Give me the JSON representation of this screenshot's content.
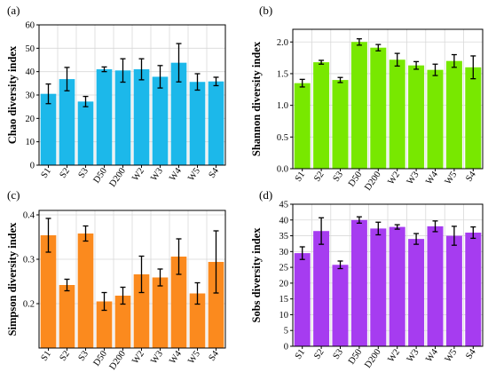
{
  "chart_data": [
    {
      "panel": "(a)",
      "type": "bar",
      "ylabel": "Chao diversity index",
      "color": "#1cb8ea",
      "categories": [
        "S1",
        "S2",
        "S3",
        "D50",
        "D200",
        "W2",
        "W3",
        "W4",
        "W5",
        "S4"
      ],
      "values": [
        30.5,
        36.8,
        27.2,
        41.0,
        40.5,
        41.0,
        37.8,
        43.8,
        35.6,
        35.8
      ],
      "errors": [
        4.2,
        5.0,
        2.2,
        1.0,
        5.0,
        4.5,
        4.8,
        8.2,
        3.5,
        1.8
      ],
      "ylim": [
        0,
        60
      ],
      "yticks": [
        0,
        10,
        20,
        30,
        40,
        50,
        60
      ],
      "ytick_labels": [
        "0",
        "10",
        "20",
        "30",
        "40",
        "50",
        "60"
      ],
      "grid": true
    },
    {
      "panel": "(b)",
      "type": "bar",
      "ylabel": "Shannon diversity index",
      "color": "#78e800",
      "categories": [
        "S1",
        "S2",
        "S3",
        "D50",
        "D200",
        "W2",
        "W3",
        "W4",
        "W5",
        "S4"
      ],
      "values": [
        1.35,
        1.68,
        1.4,
        2.0,
        1.91,
        1.72,
        1.63,
        1.56,
        1.7,
        1.6
      ],
      "errors": [
        0.06,
        0.03,
        0.04,
        0.05,
        0.05,
        0.1,
        0.06,
        0.09,
        0.1,
        0.18
      ],
      "ylim": [
        0,
        2.2
      ],
      "yticks": [
        0,
        0.5,
        1.0,
        1.5,
        2.0
      ],
      "ytick_labels": [
        "0.0",
        "0.5",
        "1.0",
        "1.5",
        "2.0"
      ],
      "grid": true
    },
    {
      "panel": "(c)",
      "type": "bar",
      "ylabel": "Simpson diversity index",
      "color": "#fb8a1e",
      "categories": [
        "S1",
        "S2",
        "S3",
        "D50",
        "D200",
        "W2",
        "W3",
        "W4",
        "W5",
        "S4"
      ],
      "values": [
        0.354,
        0.242,
        0.358,
        0.205,
        0.218,
        0.266,
        0.259,
        0.306,
        0.223,
        0.294
      ],
      "errors": [
        0.038,
        0.013,
        0.017,
        0.02,
        0.019,
        0.041,
        0.019,
        0.04,
        0.024,
        0.07
      ],
      "ylim": [
        0.1,
        0.41
      ],
      "yticks": [
        0.2,
        0.3,
        0.4
      ],
      "ytick_labels": [
        "0.2",
        "0.3",
        "0.4"
      ],
      "grid": true
    },
    {
      "panel": "(d)",
      "type": "bar",
      "ylabel": "Sobs diversity index",
      "color": "#a63cf0",
      "categories": [
        "S1",
        "S2",
        "S3",
        "D50",
        "D200",
        "W2",
        "W3",
        "W4",
        "W5",
        "S4"
      ],
      "values": [
        29.5,
        36.5,
        25.8,
        40.0,
        37.3,
        37.8,
        34.0,
        38.0,
        35.0,
        36.0
      ],
      "errors": [
        2.0,
        4.2,
        1.2,
        1.0,
        2.0,
        0.7,
        1.7,
        1.7,
        3.0,
        1.8
      ],
      "ylim": [
        0,
        45
      ],
      "yticks": [
        0,
        5,
        10,
        15,
        20,
        25,
        30,
        35,
        40,
        45
      ],
      "ytick_labels": [
        "0",
        "5",
        "10",
        "15",
        "20",
        "25",
        "30",
        "35",
        "40",
        "45"
      ],
      "grid": true
    }
  ]
}
